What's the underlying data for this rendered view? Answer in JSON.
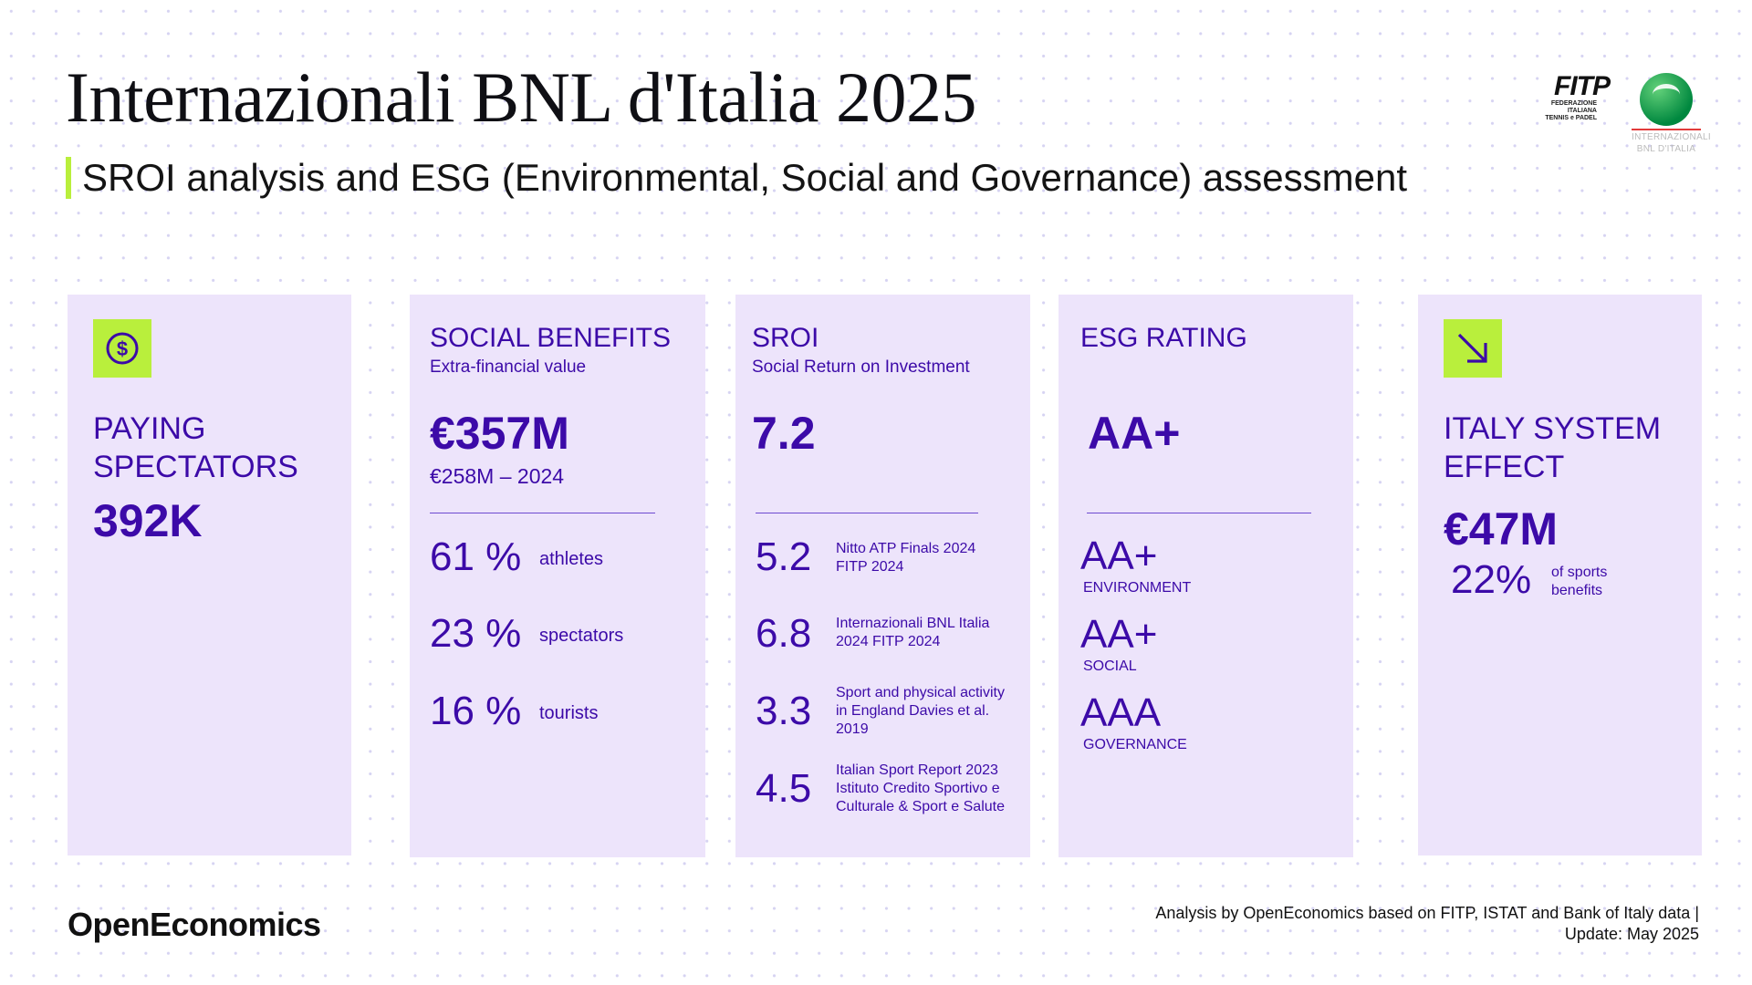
{
  "header": {
    "title": "Internazionali BNL d'Italia 2025",
    "subtitle": "SROI analysis and ESG (Environmental, Social and Governance) assessment",
    "logo_fitp": {
      "word": "FITP",
      "line1": "FEDERAZIONE",
      "line2": "ITALIANA",
      "line3": "TENNIS e PADEL"
    },
    "logo_event": {
      "line1": "INTERNAZIONALI",
      "line2": "BNL D'ITALIA"
    }
  },
  "colors": {
    "accent": "#b9ef3c",
    "primary": "#3c0aa8",
    "card_bg": "#ede4fb"
  },
  "cards": {
    "spectators": {
      "icon": "dollar-circle-icon",
      "label_line1": "PAYING",
      "label_line2": "SPECTATORS",
      "value": "392K"
    },
    "social": {
      "title": "SOCIAL BENEFITS",
      "subtitle": "Extra-financial value",
      "value": "€357M",
      "previous": "€258M – 2024",
      "breakdown": [
        {
          "pct": "61 %",
          "label": "athletes"
        },
        {
          "pct": "23 %",
          "label": "spectators"
        },
        {
          "pct": "16 %",
          "label": "tourists"
        }
      ]
    },
    "sroi": {
      "title": "SROI",
      "subtitle": "Social Return on Investment",
      "value": "7.2",
      "benchmarks": [
        {
          "value": "5.2",
          "line1": "Nitto ATP Finals 2024",
          "line2": "FITP 2024",
          "line3": ""
        },
        {
          "value": "6.8",
          "line1": "Internazionali BNL Italia",
          "line2": "2024 FITP 2024",
          "line3": ""
        },
        {
          "value": "3.3",
          "line1": "Sport and physical activity",
          "line2": "in England Davies et al.",
          "line3": "2019"
        },
        {
          "value": "4.5",
          "line1": "Italian Sport Report 2023",
          "line2": "Istituto Credito Sportivo e",
          "line3": "Culturale & Sport e Salute"
        }
      ]
    },
    "esg": {
      "title": "ESG RATING",
      "value": "AA+",
      "components": [
        {
          "rating": "AA+",
          "label": "ENVIRONMENT"
        },
        {
          "rating": "AA+",
          "label": "SOCIAL"
        },
        {
          "rating": "AAA",
          "label": "GOVERNANCE"
        }
      ]
    },
    "italy": {
      "icon": "arrow-down-right-icon",
      "label_line1": "ITALY SYSTEM",
      "label_line2": "EFFECT",
      "value": "€47M",
      "pct": "22%",
      "pct_label_line1": "of sports",
      "pct_label_line2": "benefits"
    }
  },
  "footer": {
    "brand": "OpenEconomics",
    "note_line1": "Analysis by OpenEconomics based on FITP, ISTAT and Bank of Italy data |",
    "note_line2": "Update: May 2025"
  }
}
